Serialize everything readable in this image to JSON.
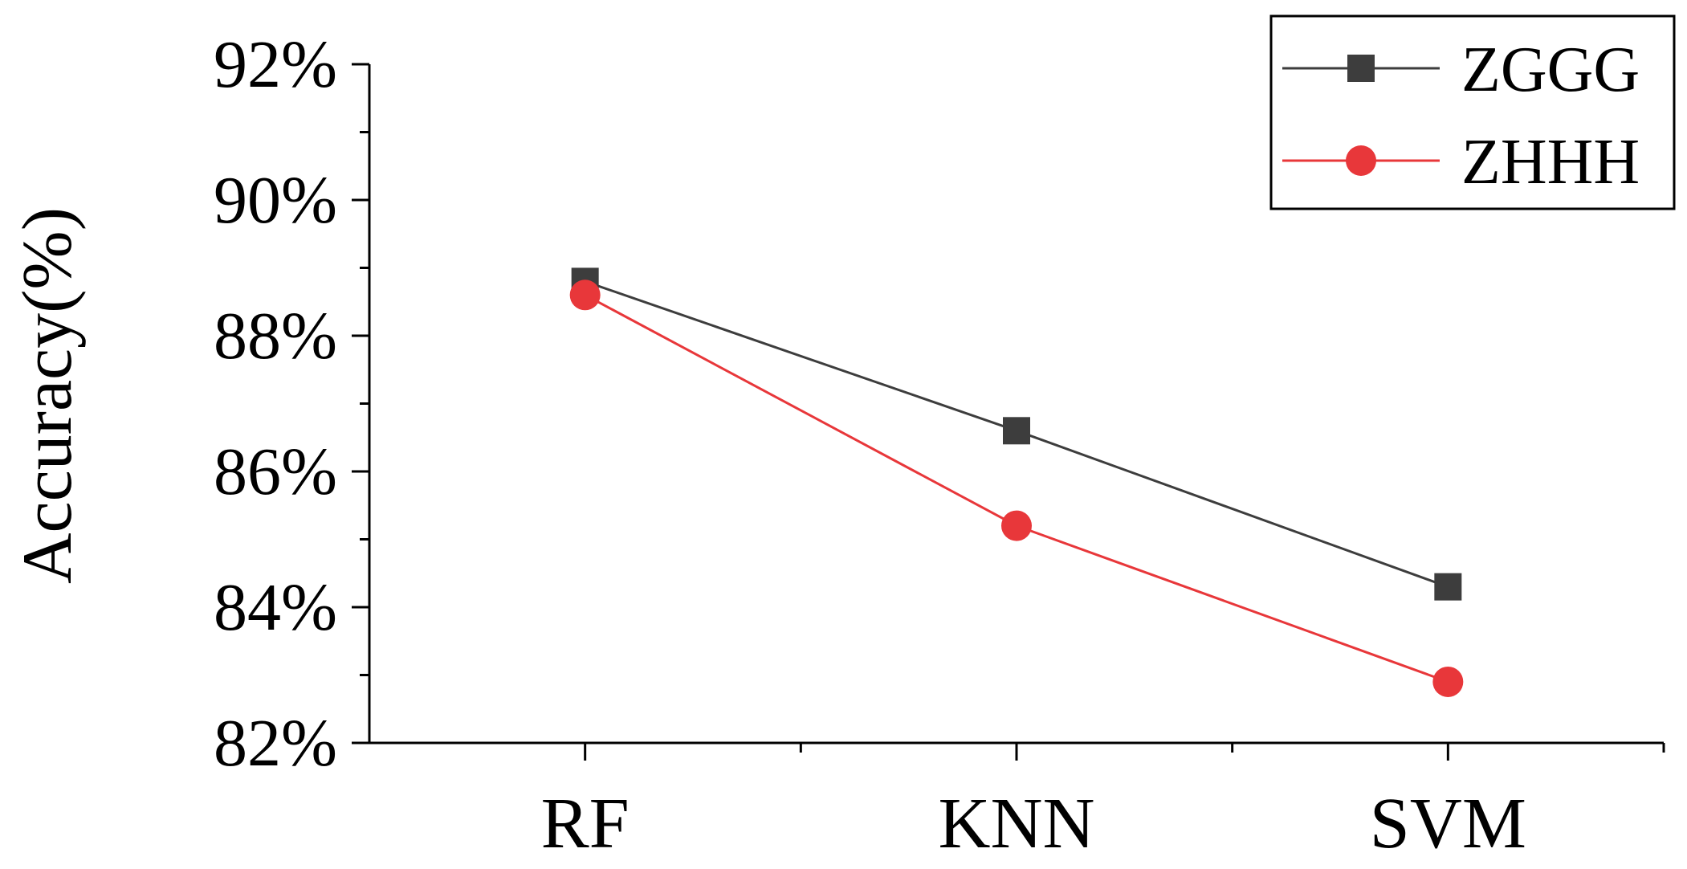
{
  "chart_data": {
    "type": "line",
    "title": "",
    "xlabel": "",
    "ylabel": "Accuracy(%)",
    "categories": [
      "RF",
      "KNN",
      "SVM"
    ],
    "ylim": [
      82,
      92
    ],
    "yticks": [
      82,
      84,
      86,
      88,
      90,
      92
    ],
    "ytick_labels": [
      "82%",
      "84%",
      "86%",
      "88%",
      "90%",
      "92%"
    ],
    "grid": false,
    "legend_position": "top-right",
    "series": [
      {
        "name": "ZGGG",
        "values": [
          88.8,
          86.6,
          84.3
        ],
        "color": "#3d3d3d",
        "marker": "square"
      },
      {
        "name": "ZHHH",
        "values": [
          88.6,
          85.2,
          82.9
        ],
        "color": "#e8373a",
        "marker": "circle"
      }
    ]
  }
}
